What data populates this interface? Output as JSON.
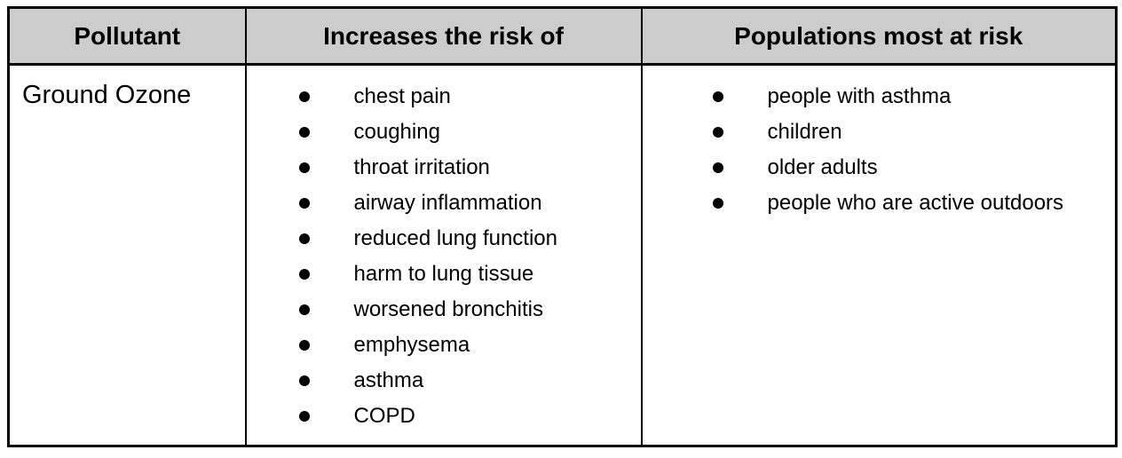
{
  "table": {
    "headers": {
      "pollutant": "Pollutant",
      "risks": "Increases the risk of",
      "populations": "Populations most at risk"
    },
    "row": {
      "pollutant": "Ground Ozone",
      "risks": [
        "chest pain",
        "coughing",
        "throat irritation",
        "airway inflammation",
        "reduced lung function",
        "harm to lung tissue",
        "worsened bronchitis",
        "emphysema",
        "asthma",
        "COPD"
      ],
      "populations": [
        "people with asthma",
        "children",
        "older adults",
        "people who are active outdoors"
      ]
    }
  },
  "colors": {
    "header_bg": "#cccccc",
    "border": "#000000",
    "text": "#000000",
    "background": "#ffffff"
  }
}
